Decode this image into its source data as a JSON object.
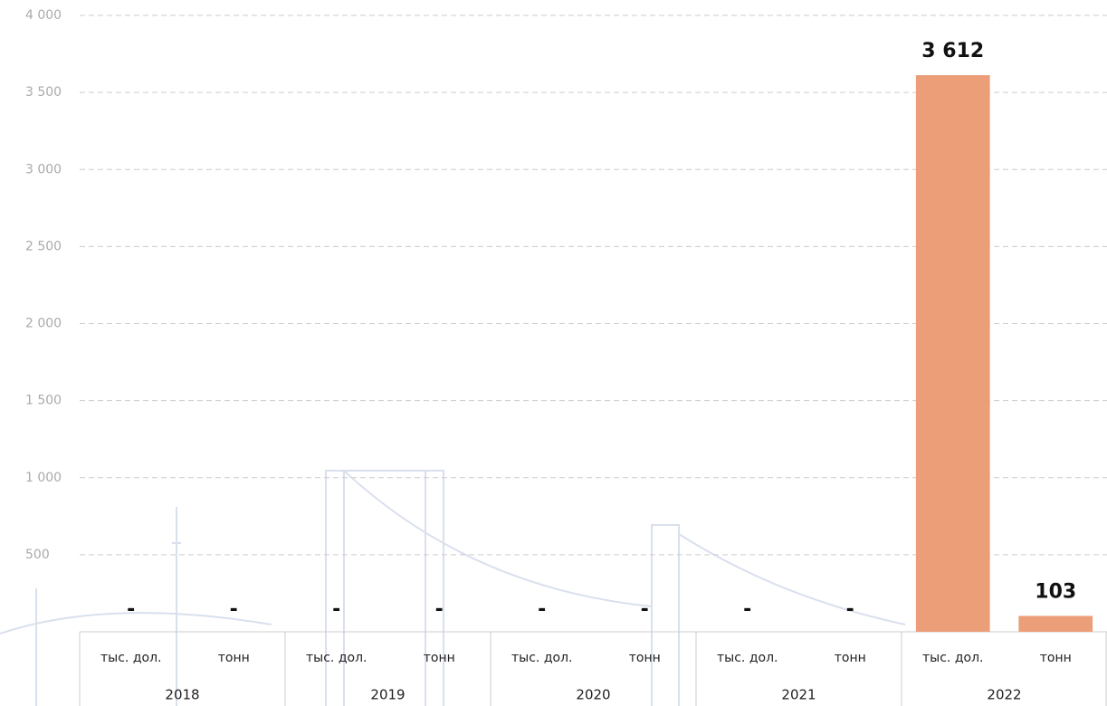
{
  "chart_data": {
    "type": "bar",
    "categories": [
      "тыс. дол.",
      "тонн",
      "тыс. дол.",
      "тонн",
      "тыс. дол.",
      "тонн",
      "тыс. дол.",
      "тонн",
      "тыс. дол.",
      "тонн"
    ],
    "category_groups": [
      "2018",
      "2019",
      "2020",
      "2021",
      "2022"
    ],
    "values": [
      null,
      null,
      null,
      null,
      null,
      null,
      null,
      null,
      3612,
      103
    ],
    "value_labels": [
      "-",
      "-",
      "-",
      "-",
      "-",
      "-",
      "-",
      "-",
      "3 612",
      "103"
    ],
    "color": "#eb9e77",
    "ylim": [
      0,
      4000
    ],
    "yticks": [
      {
        "value": 500,
        "label": "500"
      },
      {
        "value": 1000,
        "label": "1 000"
      },
      {
        "value": 1500,
        "label": "1 500"
      },
      {
        "value": 2000,
        "label": "2 000"
      },
      {
        "value": 2500,
        "label": "2 500"
      },
      {
        "value": 3000,
        "label": "3 000"
      },
      {
        "value": 3500,
        "label": "3 500"
      },
      {
        "value": 4000,
        "label": "4 000"
      }
    ],
    "grid": true
  }
}
